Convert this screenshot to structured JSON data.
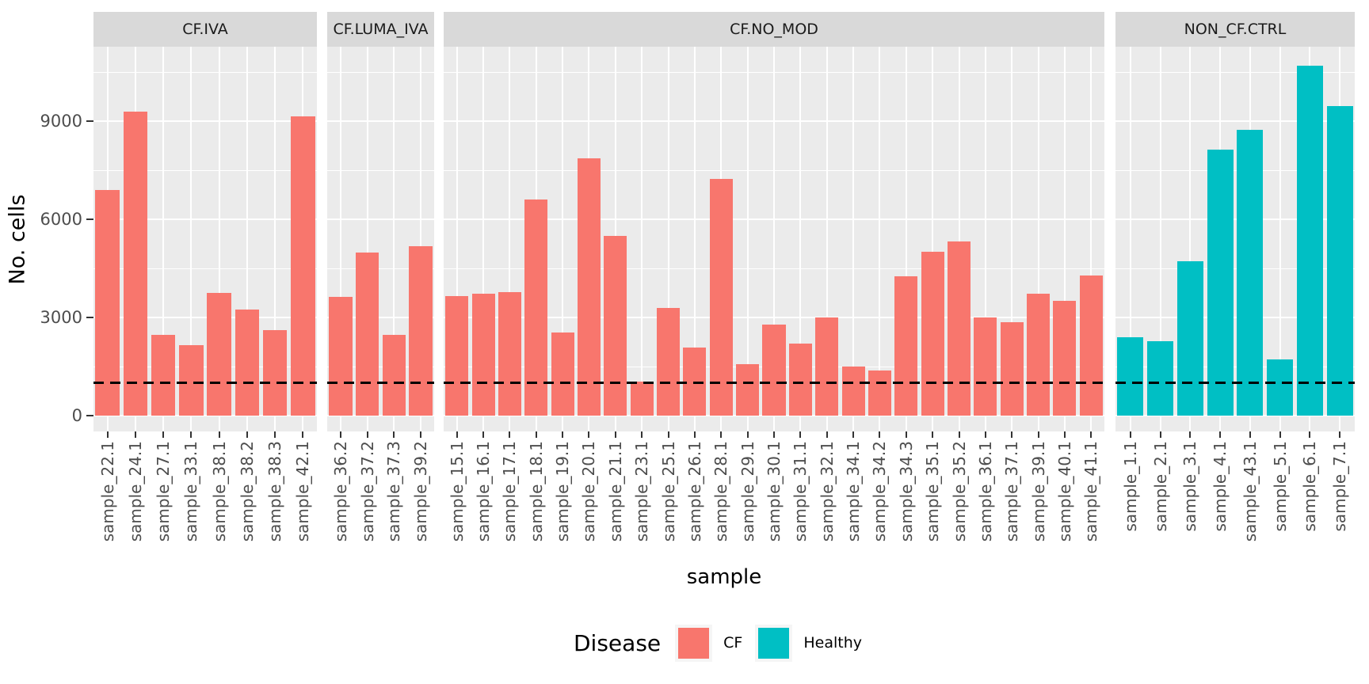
{
  "chart_data": {
    "type": "bar",
    "title": "",
    "xlabel": "sample",
    "ylabel": "No. cells",
    "ylim": [
      0,
      11300
    ],
    "y_ticks": [
      0,
      3000,
      6000,
      9000
    ],
    "y_tick_labels": [
      "0",
      "3000",
      "6000",
      "9000"
    ],
    "y_minor_ticks": [
      1500,
      4500,
      7500,
      10500
    ],
    "grid": "on",
    "hline": {
      "value": 1000,
      "style": "dashed",
      "color": "#000000"
    },
    "legend": {
      "title": "Disease",
      "position": "bottom",
      "entries": [
        {
          "label": "CF",
          "color": "#F8766D"
        },
        {
          "label": "Healthy",
          "color": "#00BFC4"
        }
      ]
    },
    "facets": [
      {
        "label": "CF.IVA",
        "group": "CF",
        "categories": [
          "sample_22.1",
          "sample_24.1",
          "sample_27.1",
          "sample_33.1",
          "sample_38.1",
          "sample_38.2",
          "sample_38.3",
          "sample_42.1"
        ],
        "values": [
          6900,
          9300,
          2480,
          2150,
          3760,
          3250,
          2610,
          9150
        ]
      },
      {
        "label": "CF.LUMA_IVA",
        "group": "CF",
        "categories": [
          "sample_36.2",
          "sample_37.2",
          "sample_37.3",
          "sample_39.2"
        ],
        "values": [
          3630,
          4980,
          2470,
          5180
        ]
      },
      {
        "label": "CF.NO_MOD",
        "group": "CF",
        "categories": [
          "sample_15.1",
          "sample_16.1",
          "sample_17.1",
          "sample_18.1",
          "sample_19.1",
          "sample_20.1",
          "sample_21.1",
          "sample_23.1",
          "sample_25.1",
          "sample_26.1",
          "sample_28.1",
          "sample_29.1",
          "sample_30.1",
          "sample_31.1",
          "sample_32.1",
          "sample_34.1",
          "sample_34.2",
          "sample_34.3",
          "sample_35.1",
          "sample_35.2",
          "sample_36.1",
          "sample_37.1",
          "sample_39.1",
          "sample_40.1",
          "sample_41.1"
        ],
        "values": [
          3660,
          3720,
          3770,
          6600,
          2550,
          7870,
          5500,
          1050,
          3280,
          2090,
          7230,
          1570,
          2790,
          2190,
          3010,
          1490,
          1370,
          4250,
          5000,
          5330,
          3000,
          2860,
          3730,
          3500,
          4280
        ]
      },
      {
        "label": "NON_CF.CTRL",
        "group": "Healthy",
        "categories": [
          "sample_1.1",
          "sample_2.1",
          "sample_3.1",
          "sample_4.1",
          "sample_43.1",
          "sample_5.1",
          "sample_6.1",
          "sample_7.1"
        ],
        "values": [
          2390,
          2280,
          4730,
          8140,
          8740,
          1720,
          10700,
          9450
        ]
      }
    ]
  },
  "colors": {
    "cf": "#F8766D",
    "healthy": "#00BFC4",
    "panel_bg": "#EBEBEB",
    "strip_bg": "#D9D9D9",
    "grid": "#FFFFFF",
    "tick_text": "#4D4D4D",
    "title_text": "#000000"
  }
}
